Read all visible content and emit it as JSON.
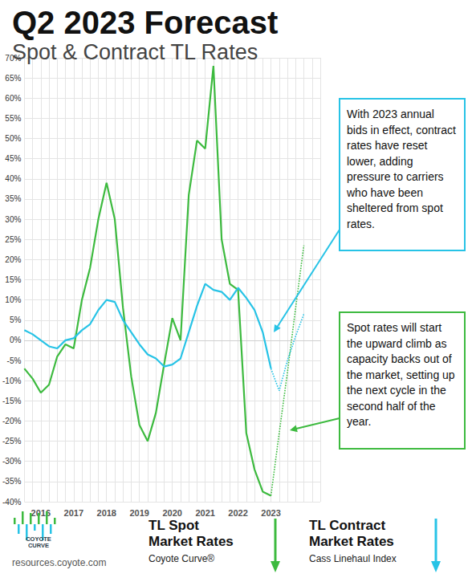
{
  "chart_data": {
    "type": "line",
    "title": "Q2 2023 Forecast",
    "subtitle": "Spot & Contract TL Rates",
    "categories": [
      null,
      null,
      "2016",
      null,
      null,
      null,
      "2017",
      null,
      null,
      null,
      "2018",
      null,
      null,
      null,
      "2019",
      null,
      null,
      null,
      "2020",
      null,
      null,
      null,
      "2021",
      null,
      null,
      null,
      "2022",
      null,
      null,
      null,
      "2023",
      null,
      null,
      null,
      null,
      null,
      null
    ],
    "series": [
      {
        "name": "TL Spot Market Rates",
        "source": "Coyote Curve®",
        "color": "#3dba3f",
        "line_style": "solid",
        "values": [
          -7,
          -9.5,
          -13,
          -11,
          -4,
          -1,
          -2,
          10,
          18,
          30,
          39,
          30,
          8,
          -9,
          -21,
          -25,
          -18,
          -6,
          5.5,
          0,
          36,
          49.5,
          47.5,
          68,
          25,
          14,
          12.5,
          -23,
          -32,
          -37.5,
          -38.5,
          null,
          null,
          null,
          null,
          null,
          null
        ],
        "forecast": [
          null,
          null,
          null,
          null,
          null,
          null,
          null,
          null,
          null,
          null,
          null,
          null,
          null,
          null,
          null,
          null,
          null,
          null,
          null,
          null,
          null,
          null,
          null,
          null,
          null,
          null,
          null,
          null,
          null,
          null,
          -38.5,
          -23,
          -8,
          8,
          23.5,
          null,
          null
        ]
      },
      {
        "name": "TL Contract Market Rates",
        "source": "Cass Linehaul Index",
        "color": "#27c3e6",
        "line_style": "solid",
        "values": [
          2.5,
          1.5,
          0,
          -1.5,
          -2,
          0,
          0.5,
          2.5,
          4,
          7.5,
          10,
          9.5,
          5,
          2,
          -1,
          -3.5,
          -4.5,
          -6.5,
          -6,
          -4.5,
          2,
          8.5,
          14,
          12.5,
          12,
          10,
          13,
          10.5,
          7.5,
          2,
          -7,
          null,
          null,
          null,
          null,
          null,
          null
        ],
        "forecast": [
          null,
          null,
          null,
          null,
          null,
          null,
          null,
          null,
          null,
          null,
          null,
          null,
          null,
          null,
          null,
          null,
          null,
          null,
          null,
          null,
          null,
          null,
          null,
          null,
          null,
          null,
          null,
          null,
          null,
          null,
          -7,
          -12.5,
          -5,
          1,
          6.5,
          null,
          null
        ]
      }
    ],
    "ylim": [
      -40,
      70
    ],
    "yticks": [
      {
        "value": -40,
        "label": "-40%"
      },
      {
        "value": -35,
        "label": "-35%"
      },
      {
        "value": -30,
        "label": "-30%"
      },
      {
        "value": -25,
        "label": "-25%"
      },
      {
        "value": -20,
        "label": "-20%"
      },
      {
        "value": -15,
        "label": "-15%"
      },
      {
        "value": -10,
        "label": "-10%"
      },
      {
        "value": -5,
        "label": "-5%"
      },
      {
        "value": 0,
        "label": "0%"
      },
      {
        "value": 5,
        "label": "5%"
      },
      {
        "value": 10,
        "label": "10%"
      },
      {
        "value": 15,
        "label": "15%"
      },
      {
        "value": 20,
        "label": "20%"
      },
      {
        "value": 25,
        "label": "25%"
      },
      {
        "value": 30,
        "label": "30%"
      },
      {
        "value": 35,
        "label": "35%"
      },
      {
        "value": 40,
        "label": "40%"
      },
      {
        "value": 45,
        "label": "45%"
      },
      {
        "value": 50,
        "label": "50%"
      },
      {
        "value": 55,
        "label": "55%"
      },
      {
        "value": 60,
        "label": "60%"
      },
      {
        "value": 65,
        "label": "65%"
      },
      {
        "value": 70,
        "label": "70%"
      }
    ],
    "grid": true,
    "legend": "bottom",
    "annotations": [
      {
        "text": "With 2023 annual bids in effect, contract rates have reset lower, adding pressure to carriers who have been sheltered from spot rates.",
        "color": "#27c3e6"
      },
      {
        "text": "Spot rates will start the upward climb as capacity backs out of the market, setting up the next cycle in the second half of the year.",
        "color": "#3dba3f"
      }
    ],
    "logo": [
      "COYOTE",
      "CURVE"
    ],
    "website": "resources.coyote.com"
  }
}
